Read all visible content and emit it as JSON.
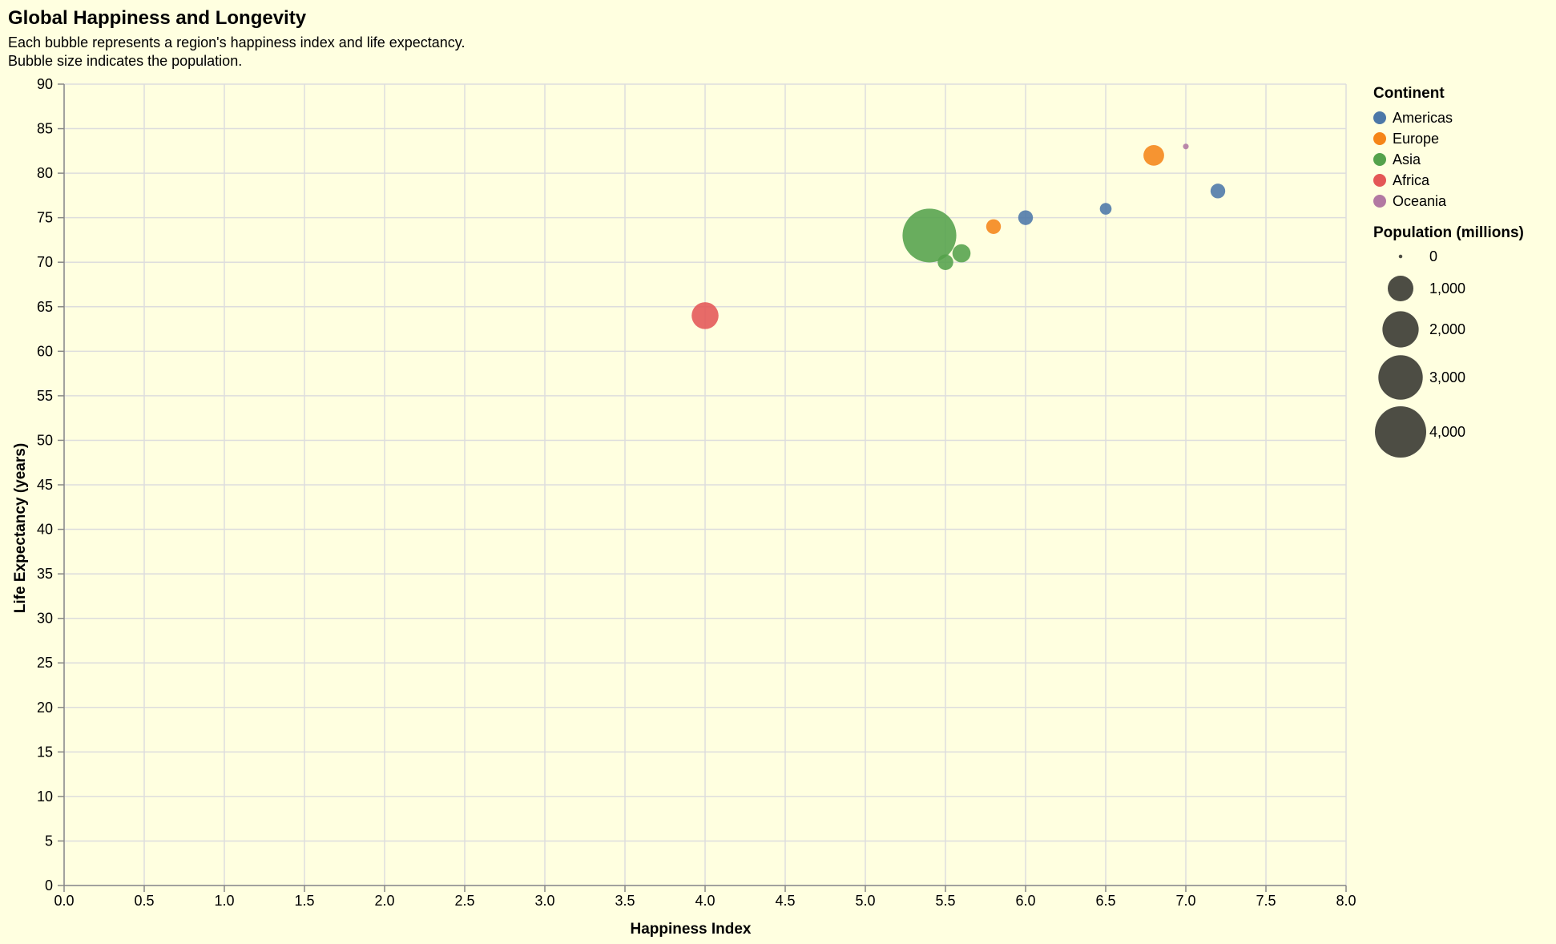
{
  "chart_data": {
    "type": "scatter",
    "title": "Global Happiness and Longevity",
    "subtitle": [
      "Each bubble represents a region's happiness index and life expectancy.",
      "Bubble size indicates the population."
    ],
    "xlabel": "Happiness Index",
    "ylabel": "Life Expectancy (years)",
    "xlim": [
      0,
      8
    ],
    "ylim": [
      0,
      90
    ],
    "x_ticks": [
      "0.0",
      "0.5",
      "1.0",
      "1.5",
      "2.0",
      "2.5",
      "3.0",
      "3.5",
      "4.0",
      "4.5",
      "5.0",
      "5.5",
      "6.0",
      "6.5",
      "7.0",
      "7.5",
      "8.0"
    ],
    "y_ticks": [
      "0",
      "5",
      "10",
      "15",
      "20",
      "25",
      "30",
      "35",
      "40",
      "45",
      "50",
      "55",
      "60",
      "65",
      "70",
      "75",
      "80",
      "85",
      "90"
    ],
    "grid": true,
    "legend_placement": "right",
    "color_legend": {
      "title": "Continent",
      "entries": [
        {
          "name": "Americas",
          "color": "#4c78a8"
        },
        {
          "name": "Europe",
          "color": "#f58518"
        },
        {
          "name": "Asia",
          "color": "#54a24b"
        },
        {
          "name": "Africa",
          "color": "#e45756"
        },
        {
          "name": "Oceania",
          "color": "#b279a2"
        }
      ]
    },
    "size_legend": {
      "title": "Population (millions)",
      "values": [
        0,
        1000,
        2000,
        3000,
        4000
      ],
      "labels": [
        "0",
        "1,000",
        "2,000",
        "3,000",
        "4,000"
      ],
      "color": "#4d4d44"
    },
    "points": [
      {
        "continent": "Americas",
        "x": 7.2,
        "y": 78,
        "size": 330
      },
      {
        "continent": "Americas",
        "x": 6.5,
        "y": 76,
        "size": 210
      },
      {
        "continent": "Americas",
        "x": 6.0,
        "y": 75,
        "size": 330
      },
      {
        "continent": "Europe",
        "x": 6.8,
        "y": 82,
        "size": 650
      },
      {
        "continent": "Europe",
        "x": 5.8,
        "y": 74,
        "size": 330
      },
      {
        "continent": "Asia",
        "x": 5.4,
        "y": 73,
        "size": 4400
      },
      {
        "continent": "Asia",
        "x": 5.6,
        "y": 71,
        "size": 500
      },
      {
        "continent": "Asia",
        "x": 5.5,
        "y": 70,
        "size": 370
      },
      {
        "continent": "Africa",
        "x": 4.0,
        "y": 64,
        "size": 1100
      },
      {
        "continent": "Oceania",
        "x": 7.0,
        "y": 83,
        "size": 50
      }
    ]
  }
}
